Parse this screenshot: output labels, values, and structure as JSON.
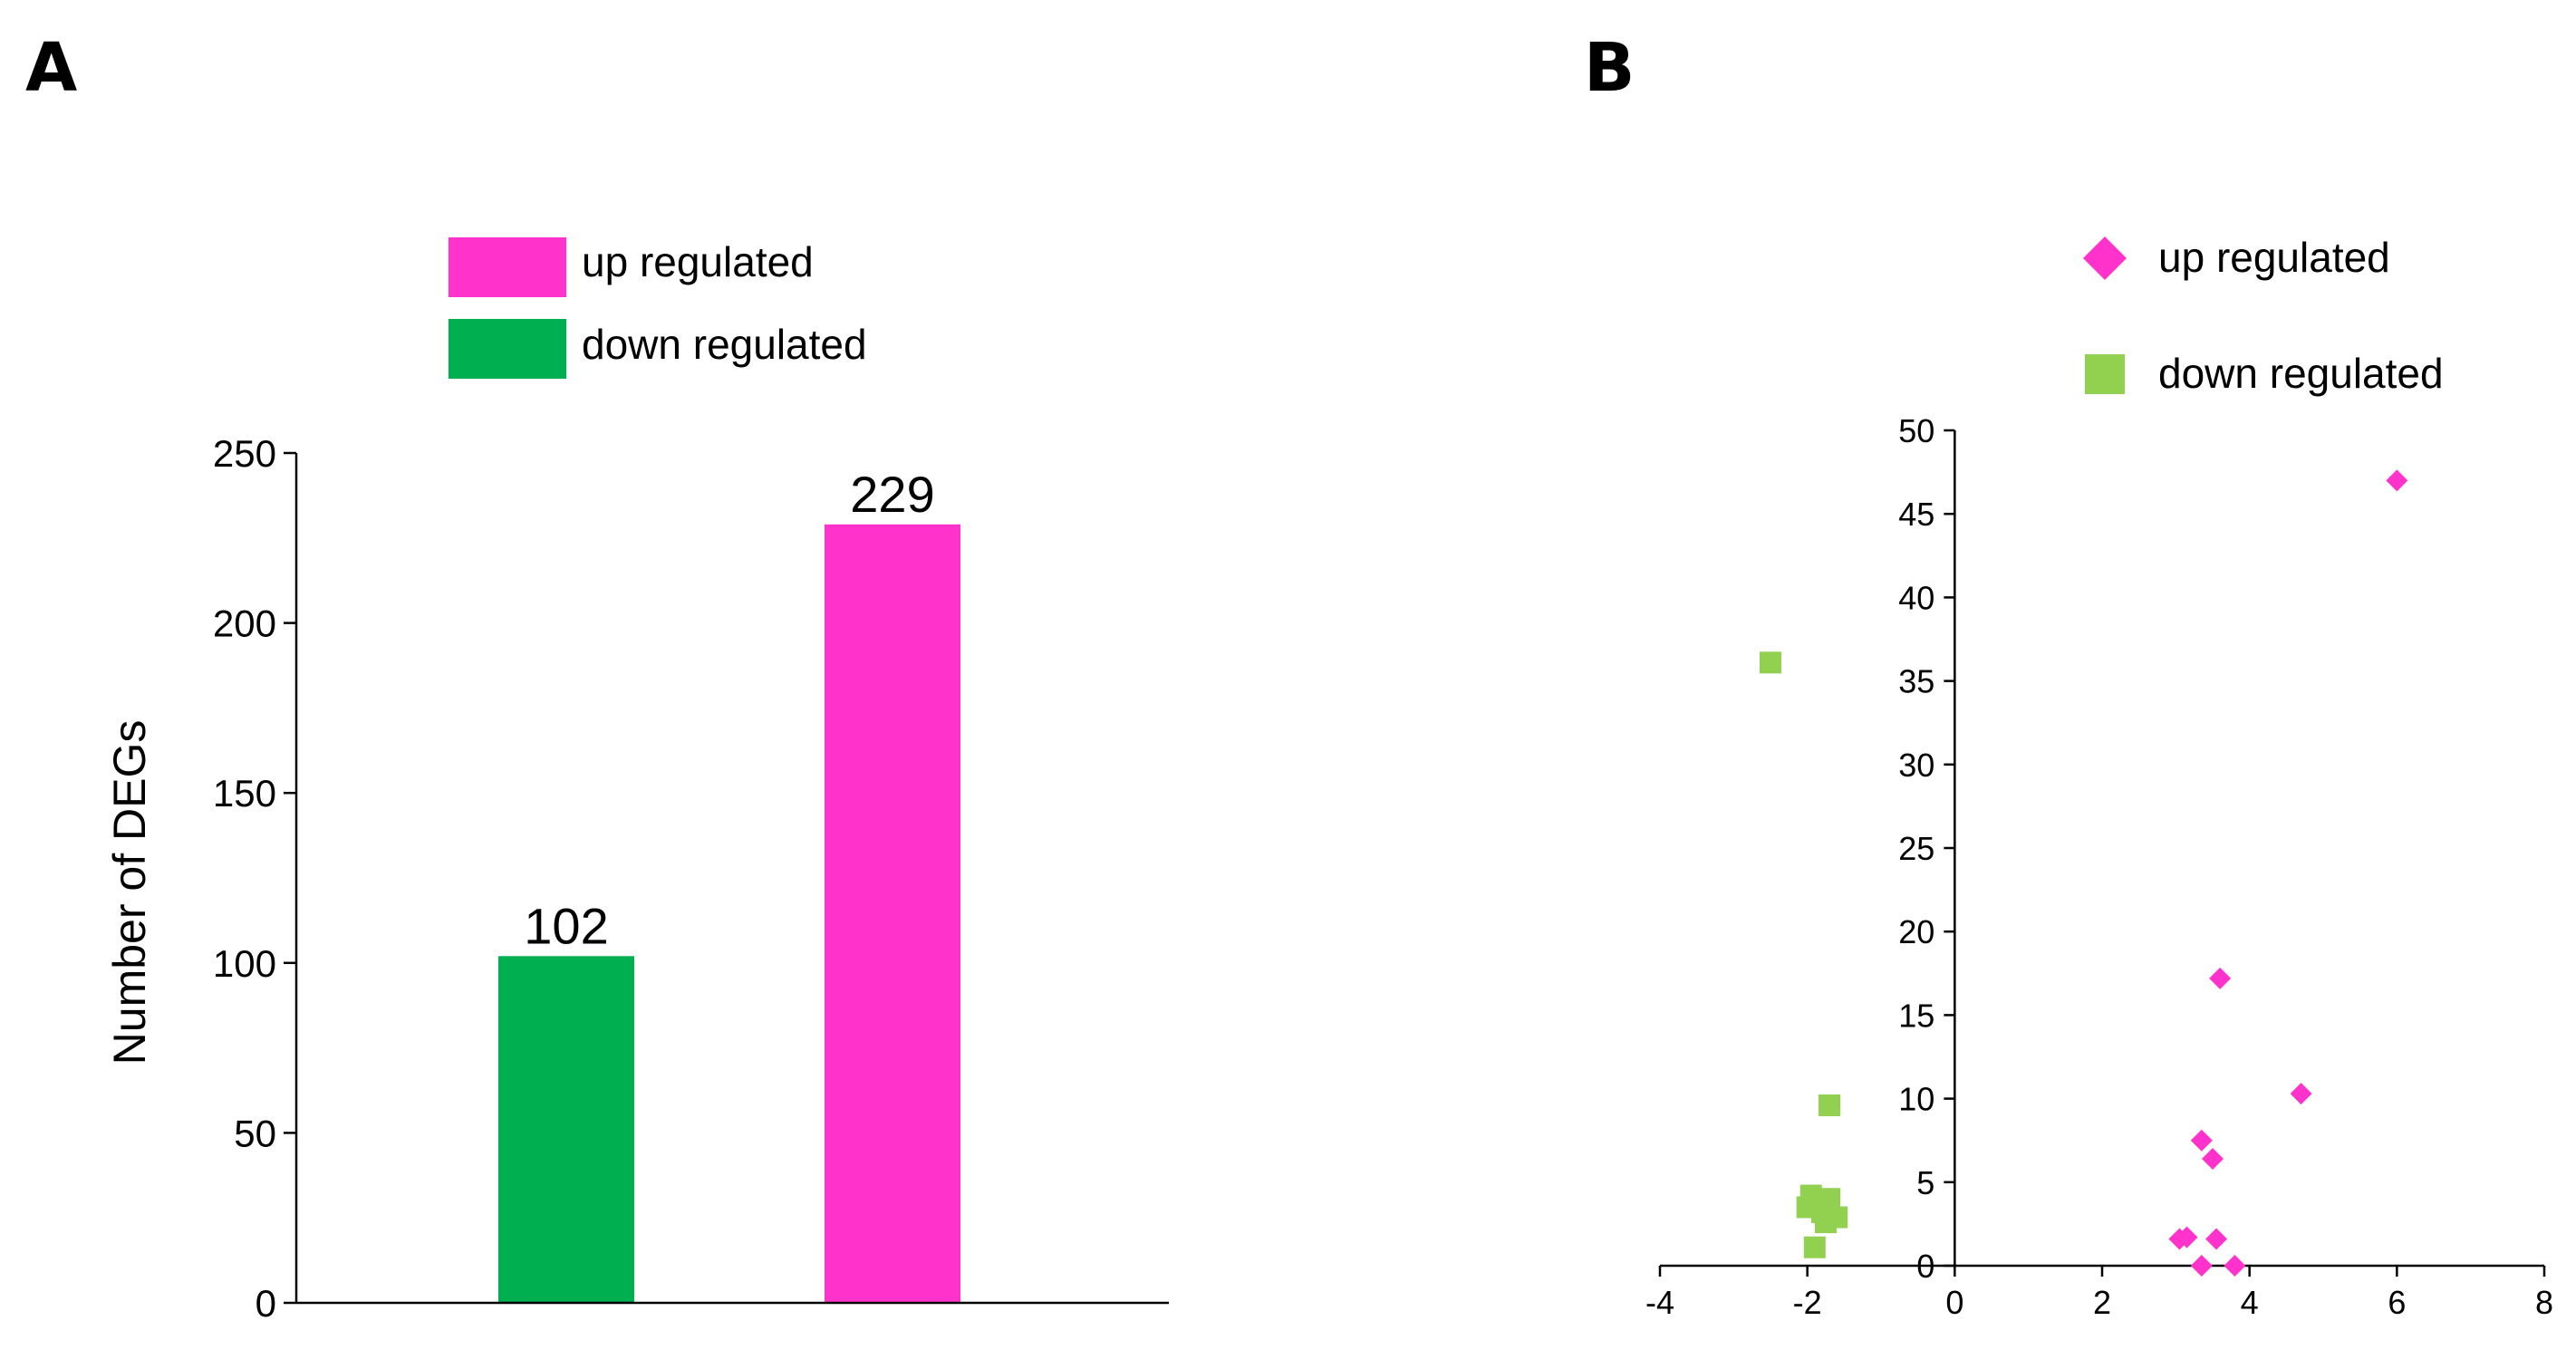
{
  "chart_data": [
    {
      "panel_label": "A",
      "type": "bar",
      "categories": [
        "down regulated",
        "up regulated"
      ],
      "values": [
        102,
        229
      ],
      "data_labels": [
        "102",
        "229"
      ],
      "colors": [
        "#00B050",
        "#FF33CC"
      ],
      "ylabel": "Number of DEGs",
      "xlabel": "",
      "ylim": [
        0,
        250
      ],
      "yticks": [
        "0",
        "50",
        "100",
        "150",
        "200",
        "250"
      ],
      "legend": [
        {
          "label": "up regulated",
          "color": "#FF33CC"
        },
        {
          "label": "down regulated",
          "color": "#00B050"
        }
      ],
      "legend_placement": "top",
      "grid": false
    },
    {
      "panel_label": "B",
      "type": "scatter",
      "xlim": [
        -4,
        8
      ],
      "ylim": [
        0,
        50
      ],
      "xticks": [
        "-4",
        "-2",
        "0",
        "2",
        "4",
        "6",
        "8"
      ],
      "yticks": [
        "0",
        "5",
        "10",
        "15",
        "20",
        "25",
        "30",
        "35",
        "40",
        "45",
        "50"
      ],
      "xlabel": "",
      "ylabel": "",
      "legend": [
        {
          "label": "up regulated",
          "color": "#FF33CC",
          "marker": "diamond"
        },
        {
          "label": "down regulated",
          "color": "#92D050",
          "marker": "square"
        }
      ],
      "legend_placement": "top-right",
      "grid": false,
      "series": [
        {
          "name": "up regulated",
          "marker": "diamond",
          "color": "#FF33CC",
          "points": [
            [
              6.0,
              47.0
            ],
            [
              3.6,
              17.2
            ],
            [
              4.7,
              10.3
            ],
            [
              3.35,
              7.5
            ],
            [
              3.5,
              6.4
            ],
            [
              3.05,
              1.6
            ],
            [
              3.15,
              1.7
            ],
            [
              3.55,
              1.6
            ],
            [
              3.35,
              0.0
            ],
            [
              3.8,
              0.0
            ]
          ]
        },
        {
          "name": "down regulated",
          "marker": "square",
          "color": "#92D050",
          "points": [
            [
              -2.5,
              36.1
            ],
            [
              -1.7,
              9.6
            ],
            [
              -1.95,
              4.2
            ],
            [
              -1.7,
              4.0
            ],
            [
              -2.0,
              3.5
            ],
            [
              -1.8,
              3.2
            ],
            [
              -1.6,
              2.9
            ],
            [
              -1.75,
              2.6
            ],
            [
              -1.9,
              1.1
            ]
          ]
        }
      ]
    }
  ]
}
